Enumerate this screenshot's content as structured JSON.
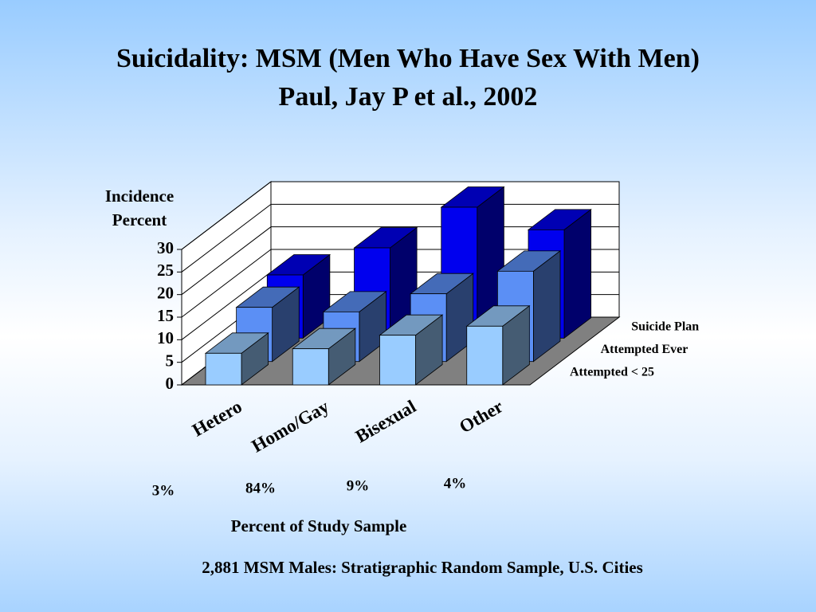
{
  "chart_data": {
    "type": "bar3d",
    "title": "Suicidality: MSM (Men Who Have Sex With Men)",
    "subtitle": "Paul, Jay P et al., 2002",
    "y_label": "Incidence Percent",
    "categories": [
      "Hetero",
      "Homo/Gay",
      "Bisexual",
      "Other"
    ],
    "series": [
      {
        "name": "Attempted < 25",
        "color": "#99ccff",
        "values": [
          7,
          8,
          11,
          13
        ]
      },
      {
        "name": "Attempted Ever",
        "color": "#5b8ff5",
        "values": [
          12,
          11,
          15,
          20
        ]
      },
      {
        "name": "Suicide Plan",
        "color": "#0000ee",
        "values": [
          14,
          20,
          29,
          24
        ]
      }
    ],
    "ylim": [
      0,
      30
    ],
    "yticks": [
      0,
      5,
      10,
      15,
      20,
      25,
      30
    ],
    "grid": true,
    "sample_share": {
      "label": "Percent of Study Sample",
      "values": [
        3,
        84,
        9,
        4
      ],
      "value_labels": [
        "3%",
        "84%",
        "9%",
        "4%"
      ]
    },
    "footnote": "2,881 MSM Males: Stratigraphic Random  Sample, U.S. Cities"
  }
}
